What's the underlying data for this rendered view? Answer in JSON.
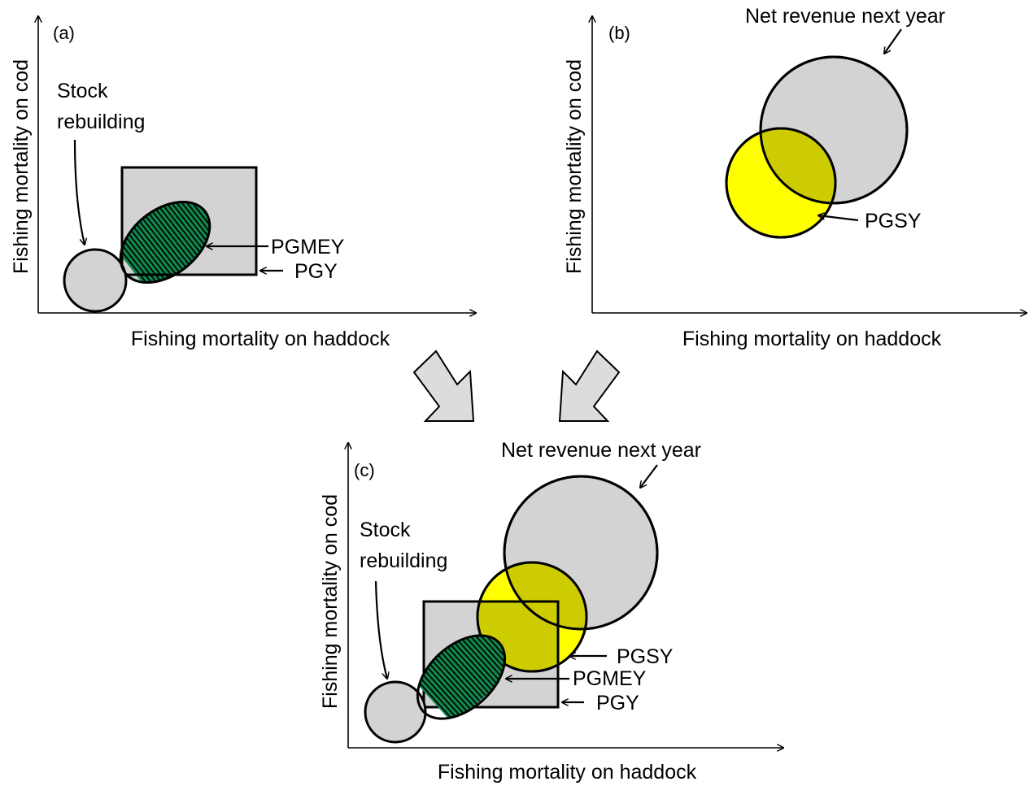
{
  "figure": {
    "colors": {
      "grey_fill": "#d3d3d3",
      "yellow_fill": "#ffff00",
      "overlap_fill": "#cccc00",
      "green_fill": "#0f8a4e",
      "arrow_fill": "#dcdcdc",
      "stroke": "#000000"
    },
    "panel_a": {
      "letter": "(a)",
      "y_axis_title": "Fishing mortality on cod",
      "x_axis_title": "Fishing mortality on haddock",
      "stock_rebuilding_line1": "Stock",
      "stock_rebuilding_line2": "rebuilding",
      "pgmey_label": "PGMEY",
      "pgy_label": "PGY"
    },
    "panel_b": {
      "letter": "(b)",
      "y_axis_title": "Fishing mortality on cod",
      "x_axis_title": "Fishing mortality on haddock",
      "net_revenue_label": "Net revenue next year",
      "pgsy_label": "PGSY"
    },
    "panel_c": {
      "letter": "(c)",
      "y_axis_title": "Fishing mortality on cod",
      "x_axis_title": "Fishing mortality on haddock",
      "net_revenue_label": "Net revenue next year",
      "stock_rebuilding_line1": "Stock",
      "stock_rebuilding_line2": "rebuilding",
      "pgsy_label": "PGSY",
      "pgmey_label": "PGMEY",
      "pgy_label": "PGY"
    },
    "transition_arrows": [
      "block-arrow-a-to-c",
      "block-arrow-b-to-c"
    ]
  }
}
